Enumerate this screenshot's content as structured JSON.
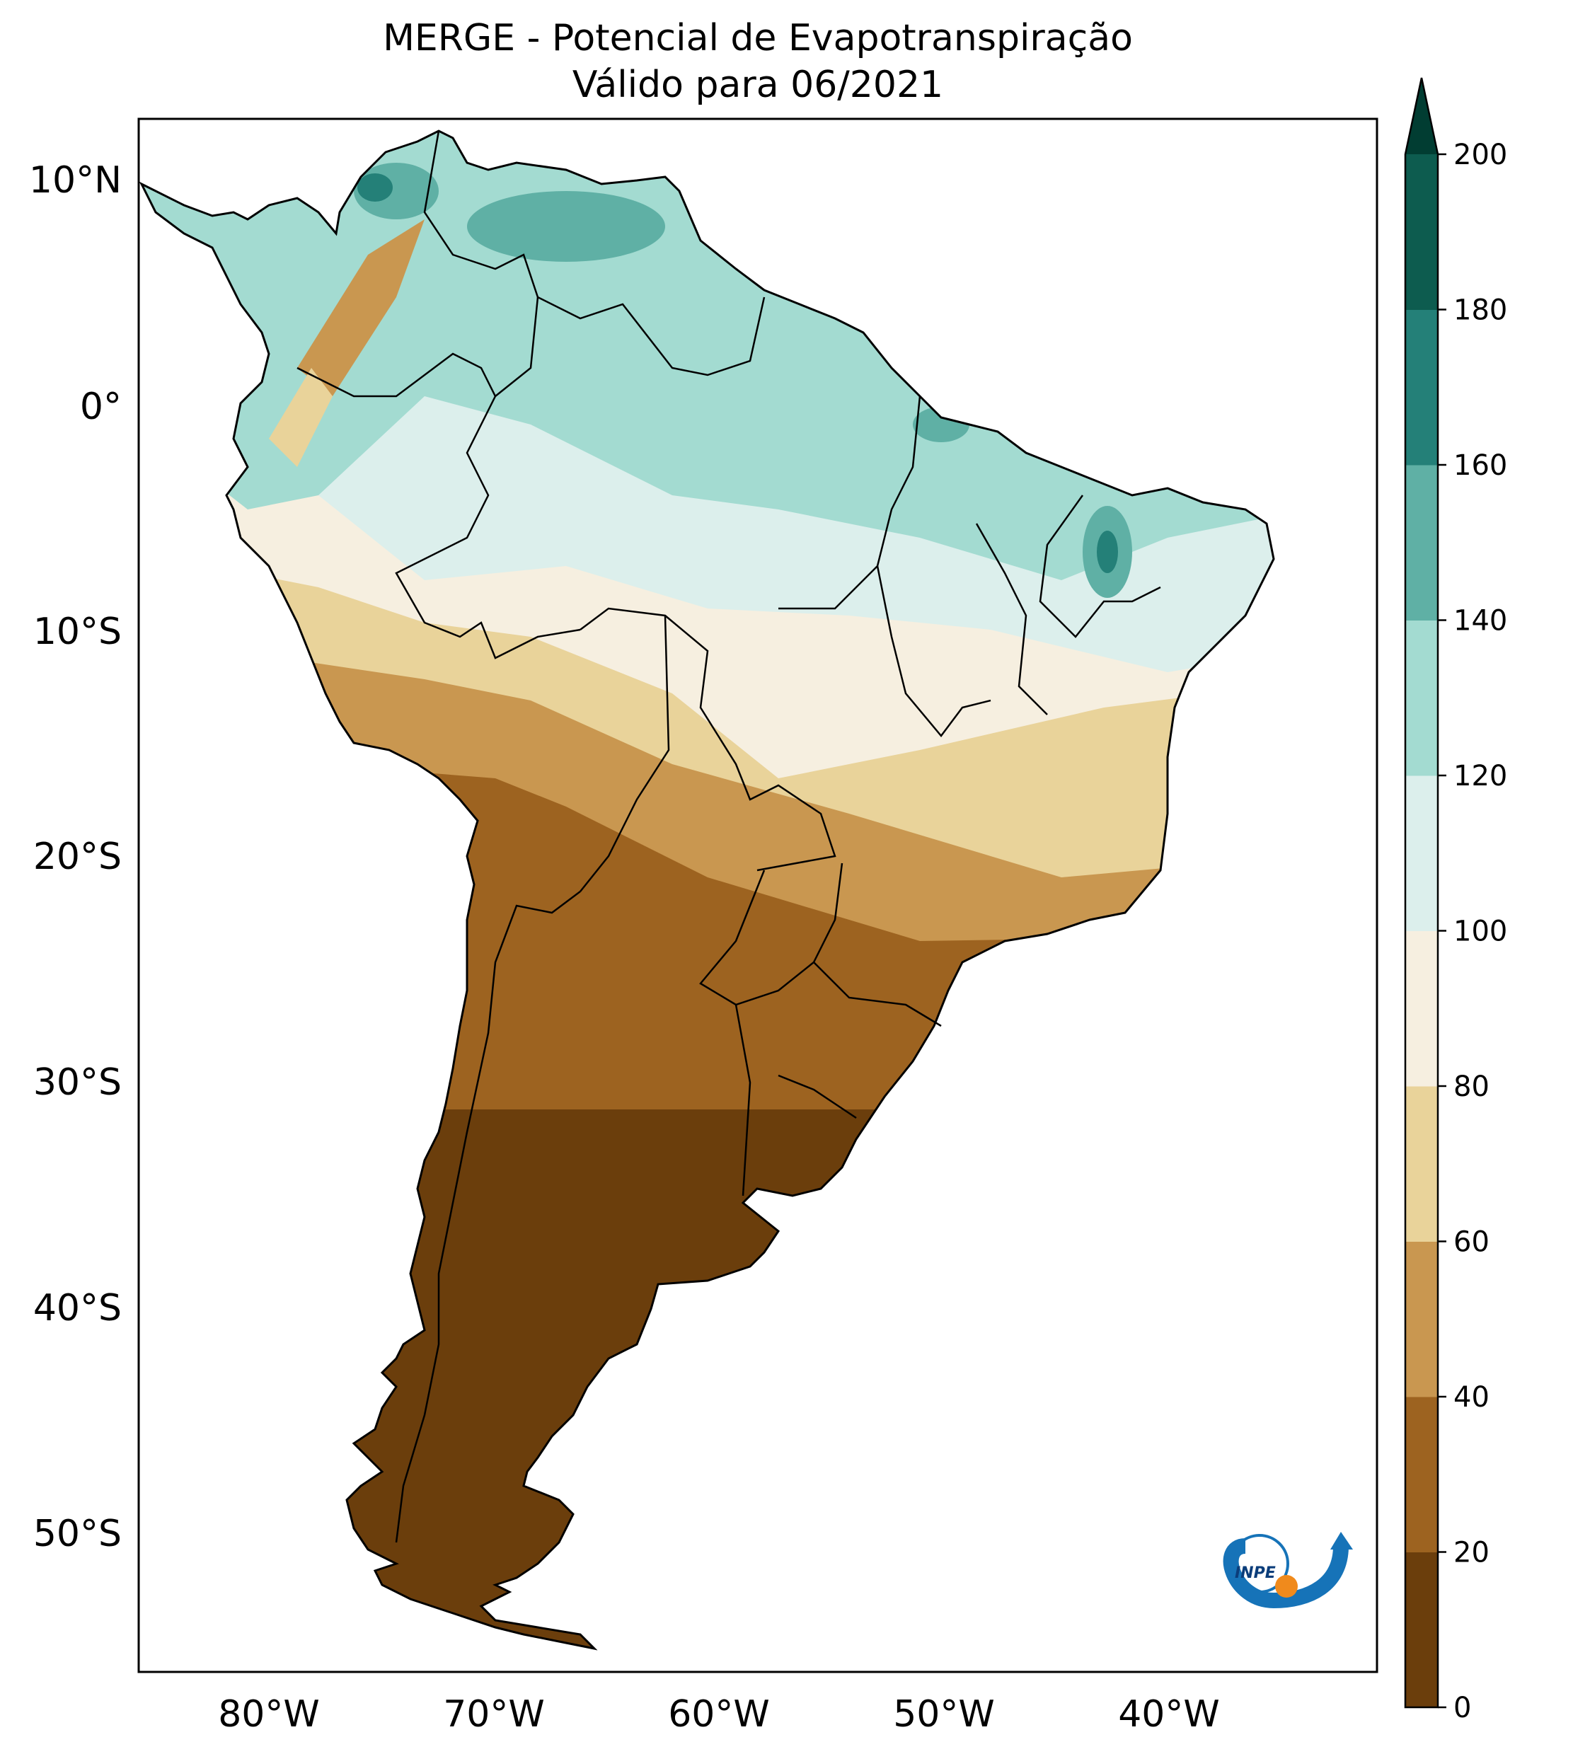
{
  "title": "MERGE - Potencial de Evapotranspiração",
  "subtitle": "Válido para 06/2021",
  "lat_labels": [
    "10°N",
    "0°",
    "10°S",
    "20°S",
    "30°S",
    "40°S",
    "50°S"
  ],
  "lon_labels": [
    "80°W",
    "70°W",
    "60°W",
    "50°W",
    "40°W"
  ],
  "colorbar": {
    "ticks": [
      "0",
      "20",
      "40",
      "60",
      "80",
      "100",
      "120",
      "140",
      "160",
      "180",
      "200"
    ],
    "colors": [
      "#6b3e0c",
      "#9d6320",
      "#c99750",
      "#e9d39a",
      "#f6efe0",
      "#dcefec",
      "#a3dbd1",
      "#5fb0a5",
      "#248078",
      "#0d5c4f"
    ],
    "extend_color": "#013d32"
  },
  "logo": {
    "text": "INPE"
  }
}
